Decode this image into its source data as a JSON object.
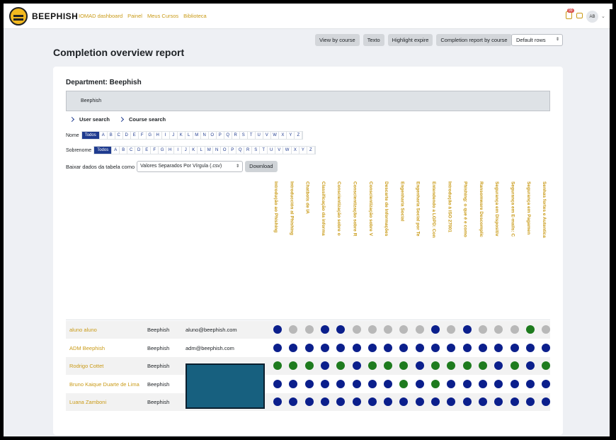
{
  "colors": {
    "accent": "#c99a16",
    "primary": "#1f3b8f",
    "complete": "#0b1f8c",
    "inprogress": "#1e7b1e",
    "notstarted": "#b8b8b8"
  },
  "navbar": {
    "brand": "BEEPHISH",
    "links": [
      "IOMAD dashboard",
      "Painel",
      "Meus Cursos",
      "Biblioteca"
    ],
    "notification_count": "99",
    "avatar": "AB"
  },
  "toolbar": {
    "buttons": [
      "View by course",
      "Texto",
      "Highlight expire",
      "Completion report by course"
    ],
    "rows_select": "Default rows"
  },
  "page_title": "Completion overview report",
  "department": {
    "title": "Department: Beephish",
    "selected": "Beephish"
  },
  "search": {
    "user": "User search",
    "course": "Course search"
  },
  "filters": {
    "first_name_label": "Nome",
    "last_name_label": "Sobrenome",
    "all_label": "Todos",
    "letters": [
      "A",
      "B",
      "C",
      "D",
      "E",
      "F",
      "G",
      "H",
      "I",
      "J",
      "K",
      "L",
      "M",
      "N",
      "O",
      "P",
      "Q",
      "R",
      "S",
      "T",
      "U",
      "V",
      "W",
      "X",
      "Y",
      "Z"
    ]
  },
  "download": {
    "label": "Baixar dados da tabela como",
    "format": "Valores Separados Por Vírgula (.csv)",
    "button": "Download"
  },
  "courses": [
    "Introdução ao Phishing",
    "Introducción al Phishing",
    "Chatbots de IA",
    "Classificação da informa",
    "Conscientização sobre o",
    "Conscientização sobre R",
    "Conscientização sobre V",
    "Descarte de Informações",
    "Engenharia Social",
    "Engenharia Social por Te",
    "Entendendo a LGPD: Con",
    "Introdução à ISO 27001",
    "Phishing: o que é e como",
    "Ransomware Descomplic",
    "Segurança em Dispositiv",
    "Segurança em E-mails: C",
    "Segurança em Pagamen",
    "Senhas fortes e Autentica"
  ],
  "users": [
    {
      "name": "aluno aluno",
      "department": "Beephish",
      "email": "aluno@beephish.com",
      "status": [
        "c",
        "n",
        "n",
        "c",
        "c",
        "n",
        "n",
        "n",
        "n",
        "n",
        "c",
        "n",
        "c",
        "n",
        "n",
        "n",
        "p",
        "n"
      ]
    },
    {
      "name": "ADM Beephish",
      "department": "Beephish",
      "email": "adm@beephish.com",
      "status": [
        "c",
        "c",
        "c",
        "c",
        "c",
        "c",
        "c",
        "c",
        "c",
        "c",
        "c",
        "c",
        "c",
        "c",
        "c",
        "c",
        "c",
        "c"
      ]
    },
    {
      "name": "Rodrigo Cottet",
      "department": "Beephish",
      "email": "",
      "status": [
        "p",
        "p",
        "p",
        "c",
        "p",
        "c",
        "p",
        "p",
        "p",
        "c",
        "p",
        "p",
        "p",
        "p",
        "c",
        "p",
        "c",
        "p"
      ]
    },
    {
      "name": "Bruno Kaique Duarte de Lima",
      "department": "Beephish",
      "email": "",
      "status": [
        "c",
        "c",
        "c",
        "c",
        "c",
        "c",
        "c",
        "c",
        "p",
        "c",
        "p",
        "c",
        "c",
        "c",
        "c",
        "c",
        "c",
        "c"
      ]
    },
    {
      "name": "Luana Zamboni",
      "department": "Beephish",
      "email": "",
      "status": [
        "c",
        "c",
        "c",
        "c",
        "c",
        "c",
        "c",
        "c",
        "c",
        "c",
        "c",
        "c",
        "c",
        "c",
        "c",
        "c",
        "c",
        "c"
      ]
    }
  ]
}
